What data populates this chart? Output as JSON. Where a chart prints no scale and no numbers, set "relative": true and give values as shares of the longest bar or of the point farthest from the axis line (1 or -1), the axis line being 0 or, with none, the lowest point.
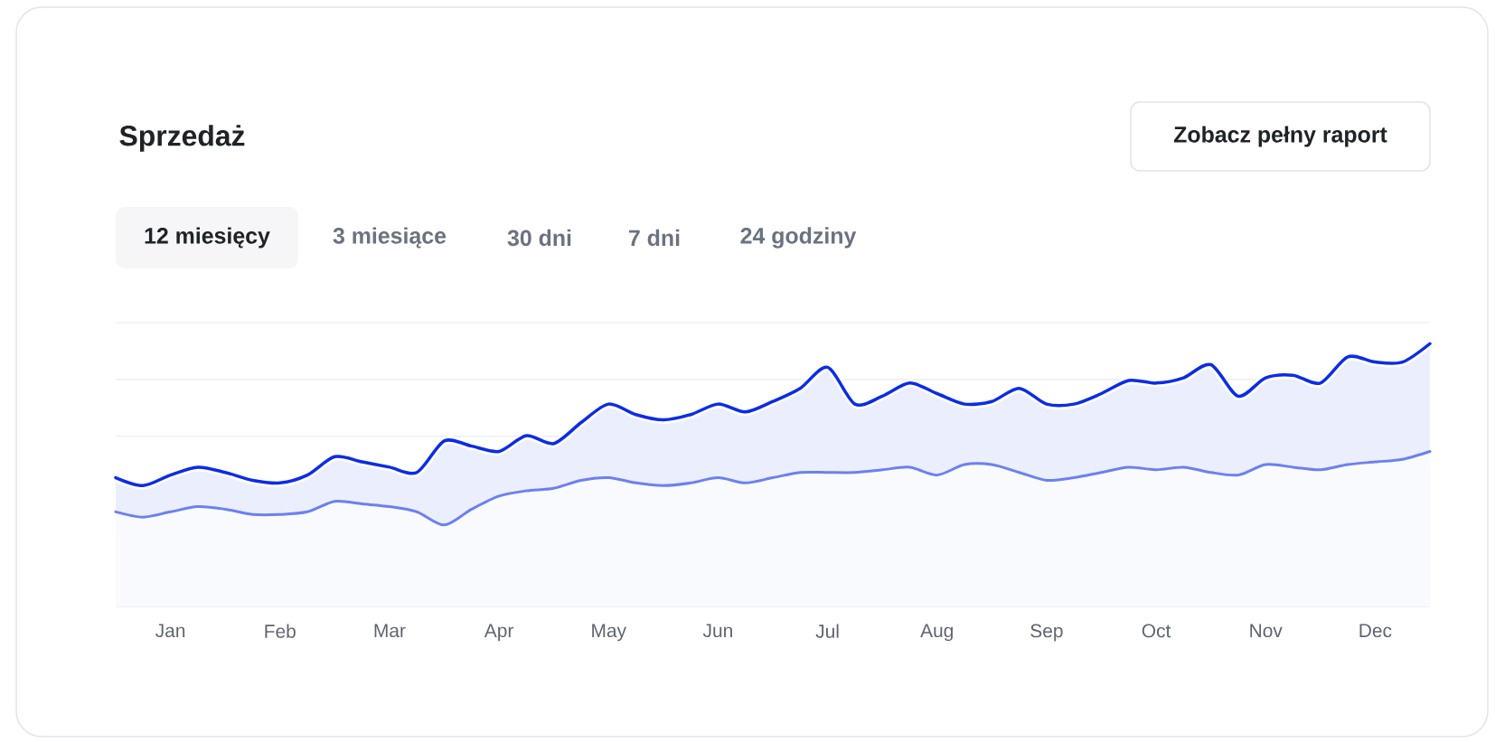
{
  "chart_data": {
    "type": "area",
    "title": "Sprzedaż",
    "annotations": [
      "Zobacz  pełny raport",
      "12 miesięcy",
      "3 miesiące",
      "30 dni",
      "7 dni",
      "24 godziny"
    ],
    "relative": true,
    "grid": "y",
    "categories": [
      null,
      null,
      "Jan",
      null,
      null,
      null,
      "Feb",
      null,
      null,
      null,
      "Mar",
      null,
      null,
      null,
      "Apr",
      null,
      null,
      null,
      "May",
      null,
      null,
      null,
      "Jun",
      null,
      null,
      null,
      "Jul",
      null,
      null,
      null,
      "Aug",
      null,
      null,
      null,
      "Sep",
      null,
      null,
      null,
      "Oct",
      null,
      null,
      null,
      "Nov",
      null,
      null,
      null,
      "Dec",
      null,
      null
    ],
    "series": [
      {
        "color": "#0b2ce8",
        "values": [
          0.49,
          0.46,
          0.5,
          0.53,
          0.51,
          0.48,
          0.47,
          0.5,
          0.57,
          0.55,
          0.53,
          0.51,
          0.63,
          0.61,
          0.59,
          0.65,
          0.62,
          0.7,
          0.77,
          0.73,
          0.71,
          0.73,
          0.77,
          0.74,
          0.78,
          0.83,
          0.91,
          0.77,
          0.8,
          0.85,
          0.81,
          0.77,
          0.78,
          0.83,
          0.77,
          0.77,
          0.81,
          0.86,
          0.85,
          0.87,
          0.92,
          0.8,
          0.87,
          0.88,
          0.85,
          0.95,
          0.93,
          0.93,
          1.0
        ]
      },
      {
        "color": "#6b80f2",
        "values": [
          0.36,
          0.34,
          0.36,
          0.38,
          0.37,
          0.35,
          0.35,
          0.36,
          0.4,
          0.39,
          0.38,
          0.36,
          0.31,
          0.37,
          0.42,
          0.44,
          0.45,
          0.48,
          0.49,
          0.47,
          0.46,
          0.47,
          0.49,
          0.47,
          0.49,
          0.51,
          0.51,
          0.51,
          0.52,
          0.53,
          0.5,
          0.54,
          0.54,
          0.51,
          0.48,
          0.49,
          0.51,
          0.53,
          0.52,
          0.53,
          0.51,
          0.5,
          0.54,
          0.53,
          0.52,
          0.54,
          0.55,
          0.56,
          0.59
        ]
      }
    ]
  }
}
